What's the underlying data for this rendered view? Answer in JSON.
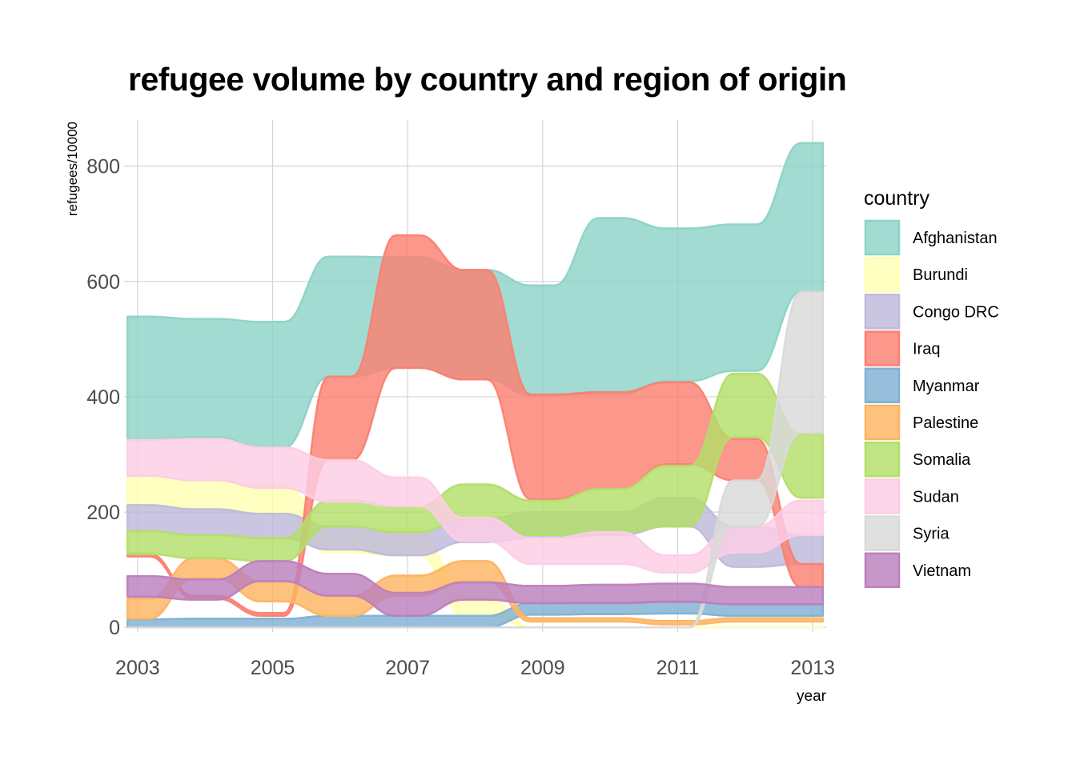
{
  "chart_data": {
    "type": "area",
    "subtype": "bump-stream",
    "title": "refugee volume by country and region of origin",
    "xlabel": "year",
    "ylabel": "refugees/10000",
    "legend_title": "country",
    "legend_position": "right",
    "grid": true,
    "xlim": [
      2002.8,
      2013.2
    ],
    "ylim": [
      -8,
      880
    ],
    "x_ticks": [
      2003,
      2005,
      2007,
      2009,
      2011,
      2013
    ],
    "y_ticks": [
      0,
      200,
      400,
      600,
      800
    ],
    "x": [
      2003,
      2004,
      2005,
      2006,
      2007,
      2008,
      2009,
      2010,
      2011,
      2012,
      2013
    ],
    "series": [
      {
        "name": "Afghanistan",
        "color": "#8DD3C7",
        "values": [
          214,
          205,
          218,
          208,
          192,
          190,
          190,
          305,
          265,
          254,
          258
        ],
        "bottoms": [
          325,
          330,
          312,
          435,
          450,
          430,
          403,
          405,
          427,
          445,
          582
        ]
      },
      {
        "name": "Burundi",
        "color": "#FFFFB3",
        "values": [
          50,
          50,
          50,
          40,
          45,
          35,
          0,
          0,
          0,
          0,
          0
        ],
        "bottoms": [
          212,
          205,
          197,
          130,
          125,
          20,
          0,
          0,
          0,
          0,
          0
        ]
      },
      {
        "name": "Congo DRC",
        "color": "#BEBADA",
        "values": [
          45,
          45,
          42,
          40,
          40,
          40,
          45,
          40,
          50,
          70,
          50
        ],
        "bottoms": [
          167,
          160,
          155,
          135,
          125,
          148,
          155,
          160,
          175,
          105,
          110
        ]
      },
      {
        "name": "Iraq",
        "color": "#FB8072",
        "values": [
          5,
          5,
          5,
          145,
          230,
          190,
          182,
          168,
          142,
          72,
          40
        ],
        "bottoms": [
          123,
          50,
          20,
          290,
          450,
          430,
          222,
          240,
          283,
          255,
          70
        ]
      },
      {
        "name": "Myanmar",
        "color": "#80B1D3",
        "values": [
          14,
          15,
          15,
          20,
          20,
          20,
          20,
          20,
          21,
          20,
          20
        ],
        "bottoms": [
          0,
          0,
          0,
          0,
          0,
          0,
          22,
          23,
          24,
          20,
          20
        ]
      },
      {
        "name": "Palestine",
        "color": "#FDB462",
        "values": [
          35,
          35,
          35,
          35,
          35,
          35,
          6,
          6,
          6,
          6,
          6
        ],
        "bottoms": [
          15,
          85,
          45,
          20,
          55,
          80,
          10,
          10,
          5,
          10,
          10
        ]
      },
      {
        "name": "Somalia",
        "color": "#B3DE69",
        "values": [
          40,
          40,
          40,
          45,
          45,
          60,
          60,
          75,
          105,
          110,
          110
        ],
        "bottoms": [
          127,
          120,
          115,
          175,
          165,
          188,
          160,
          165,
          175,
          330,
          225
        ]
      },
      {
        "name": "Sudan",
        "color": "#FCCDE5",
        "values": [
          62,
          72,
          70,
          72,
          50,
          40,
          45,
          55,
          30,
          45,
          60
        ],
        "bottoms": [
          263,
          255,
          242,
          218,
          210,
          150,
          110,
          110,
          95,
          130,
          160
        ]
      },
      {
        "name": "Syria",
        "color": "#D9D9D9",
        "values": [
          0,
          0,
          0,
          0,
          0,
          0,
          0,
          0,
          0,
          80,
          245
        ],
        "bottoms": [
          0,
          0,
          0,
          0,
          0,
          0,
          0,
          0,
          0,
          175,
          337
        ]
      },
      {
        "name": "Vietnam",
        "color": "#BC80BD",
        "values": [
          36,
          35,
          35,
          38,
          40,
          30,
          30,
          32,
          32,
          30,
          30
        ],
        "bottoms": [
          53,
          48,
          80,
          55,
          20,
          48,
          42,
          42,
          44,
          40,
          40
        ]
      }
    ]
  }
}
